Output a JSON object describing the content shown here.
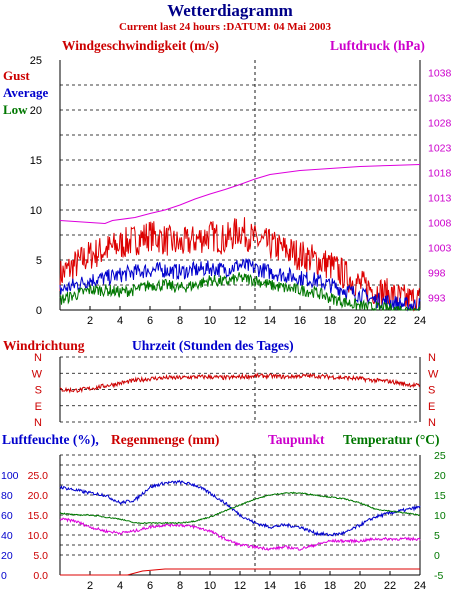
{
  "header": {
    "title": "Wetterdiagramm",
    "subtitle": "Current last 24 hours :DATUM: 04 Mai 2003"
  },
  "chart_data": [
    {
      "type": "line",
      "id": "wind_pressure",
      "left_title": "Windgeschwindigkeit (m/s)",
      "right_title": "Luftdruck (hPa)",
      "legend": [
        "Gust",
        "Average",
        "Low"
      ],
      "xlabel": "",
      "x_ticks": [
        2,
        4,
        6,
        8,
        10,
        12,
        14,
        16,
        18,
        20,
        22,
        24
      ],
      "xlim": [
        0,
        24
      ],
      "y_left_lim": [
        0,
        25
      ],
      "y_left_ticks": [
        0,
        5,
        10,
        15,
        20,
        25
      ],
      "y_right_lim": [
        990.5,
        1040.5
      ],
      "y_right_ticks": [
        993,
        998,
        1003,
        1008,
        1013,
        1018,
        1023,
        1028,
        1033,
        1038
      ],
      "grid": true,
      "marker_x": 13,
      "colors": {
        "gust": "#dd0000",
        "average": "#0000cc",
        "low": "#007700",
        "pressure": "#dd00dd"
      },
      "series": [
        {
          "name": "Gust",
          "axis": "left",
          "x": [
            0,
            1,
            2,
            3,
            4,
            5,
            6,
            7,
            8,
            9,
            10,
            11,
            12,
            13,
            14,
            15,
            16,
            17,
            18,
            19,
            20,
            21,
            22,
            23,
            24
          ],
          "values": [
            3.5,
            4.5,
            5.5,
            6.0,
            6.5,
            7.0,
            7.5,
            7.0,
            6.5,
            7.0,
            7.5,
            7.0,
            8.0,
            7.0,
            6.5,
            6.0,
            5.5,
            5.0,
            4.5,
            3.5,
            2.5,
            2.0,
            1.5,
            1.0,
            1.0
          ]
        },
        {
          "name": "Average",
          "axis": "left",
          "x": [
            0,
            1,
            2,
            3,
            4,
            5,
            6,
            7,
            8,
            9,
            10,
            11,
            12,
            13,
            14,
            15,
            16,
            17,
            18,
            19,
            20,
            21,
            22,
            23,
            24
          ],
          "values": [
            2.0,
            2.5,
            3.0,
            3.2,
            3.5,
            3.8,
            4.0,
            4.0,
            3.8,
            4.0,
            4.2,
            4.0,
            4.5,
            4.2,
            3.8,
            3.5,
            3.2,
            3.0,
            2.5,
            2.0,
            1.5,
            1.0,
            0.8,
            0.5,
            0.5
          ]
        },
        {
          "name": "Low",
          "axis": "left",
          "x": [
            0,
            1,
            2,
            3,
            4,
            5,
            6,
            7,
            8,
            9,
            10,
            11,
            12,
            13,
            14,
            15,
            16,
            17,
            18,
            19,
            20,
            21,
            22,
            23,
            24
          ],
          "values": [
            1.0,
            1.5,
            2.0,
            2.0,
            1.8,
            2.0,
            2.5,
            2.5,
            2.2,
            2.5,
            3.0,
            2.8,
            3.2,
            3.0,
            2.5,
            2.2,
            2.0,
            1.8,
            1.2,
            0.8,
            0.4,
            0.2,
            0.1,
            0.0,
            0.0
          ]
        },
        {
          "name": "Luftdruck",
          "axis": "right",
          "x": [
            0,
            2,
            3,
            3.5,
            5,
            6,
            7,
            8,
            9,
            10,
            11,
            12,
            13,
            14,
            15,
            16,
            17,
            18,
            19,
            20,
            21,
            22,
            23,
            24
          ],
          "values": [
            1008.4,
            1008.0,
            1007.8,
            1008.4,
            1009.0,
            1009.8,
            1010.5,
            1011.5,
            1012.7,
            1013.7,
            1014.6,
            1015.6,
            1016.7,
            1017.6,
            1018.0,
            1018.4,
            1018.6,
            1018.8,
            1019.0,
            1019.2,
            1019.3,
            1019.4,
            1019.5,
            1019.6
          ]
        }
      ]
    },
    {
      "type": "line",
      "id": "wind_direction",
      "title": "Windrichtung",
      "xlabel": "Uhrzeit (Stunden des Tages)",
      "y_categories": [
        "N",
        "W",
        "S",
        "E",
        "N"
      ],
      "xlim": [
        0,
        24
      ],
      "grid": true,
      "marker_x": 13,
      "series": [
        {
          "name": "Windrichtung",
          "x": [
            0,
            1,
            2,
            3,
            4,
            5,
            6,
            7,
            8,
            9,
            10,
            11,
            12,
            13,
            14,
            15,
            16,
            17,
            18,
            19,
            20,
            21,
            22,
            23,
            24
          ],
          "values": [
            180,
            175,
            185,
            200,
            215,
            230,
            240,
            245,
            245,
            250,
            250,
            245,
            250,
            255,
            255,
            250,
            255,
            255,
            250,
            245,
            240,
            230,
            225,
            210,
            200
          ]
        }
      ]
    },
    {
      "type": "line",
      "id": "humidity_temperature",
      "legend": [
        "Luftfeuchte (%),",
        "Regenmenge (mm)",
        "Taupunkt",
        "Temperatur (°C)"
      ],
      "x_ticks": [
        2,
        4,
        6,
        8,
        10,
        12,
        14,
        16,
        18,
        20,
        22,
        24
      ],
      "xlim": [
        0,
        24
      ],
      "y_left_ticks_humidity": [
        0,
        20,
        40,
        60,
        80,
        100
      ],
      "y_left_ticks_rain": [
        "0.0",
        "5.0",
        "10.0",
        "15.0",
        "20.0",
        "25.0"
      ],
      "y_right_lim": [
        -5,
        25
      ],
      "y_right_ticks": [
        -5,
        0,
        5,
        10,
        15,
        20,
        25
      ],
      "grid": true,
      "marker_x": 13,
      "colors": {
        "humidity": "#0000cc",
        "rain": "#dd0000",
        "dewpoint": "#dd00dd",
        "temperature": "#007700"
      },
      "series": [
        {
          "name": "Luftfeuchte",
          "axis": "humidity",
          "x": [
            0,
            1,
            2,
            3,
            4,
            5,
            6,
            7,
            8,
            9,
            10,
            11,
            12,
            13,
            14,
            15,
            16,
            17,
            18,
            19,
            20,
            21,
            22,
            23,
            24
          ],
          "values": [
            88,
            85,
            82,
            80,
            72,
            75,
            88,
            92,
            93,
            90,
            82,
            72,
            60,
            52,
            48,
            50,
            48,
            42,
            40,
            42,
            50,
            58,
            62,
            65,
            68
          ]
        },
        {
          "name": "Regenmenge",
          "axis": "rain",
          "x": [
            0,
            4.5,
            5.5,
            7,
            13,
            24
          ],
          "values": [
            0.0,
            0.0,
            1.0,
            1.5,
            1.5,
            1.5
          ]
        },
        {
          "name": "Taupunkt",
          "axis": "right",
          "x": [
            0,
            1,
            2,
            3,
            4,
            5,
            6,
            7,
            8,
            9,
            10,
            11,
            12,
            13,
            14,
            15,
            16,
            17,
            18,
            19,
            20,
            21,
            22,
            23,
            24
          ],
          "values": [
            9.0,
            8.5,
            7.0,
            6.0,
            5.5,
            6.0,
            7.0,
            7.5,
            7.5,
            7.0,
            6.0,
            4.0,
            2.5,
            2.0,
            1.5,
            2.0,
            1.5,
            2.5,
            3.5,
            3.5,
            3.5,
            4.0,
            4.0,
            4.0,
            4.0
          ]
        },
        {
          "name": "Temperatur",
          "axis": "right",
          "x": [
            0,
            1,
            2,
            3,
            4,
            5,
            6,
            7,
            8,
            9,
            10,
            11,
            12,
            13,
            14,
            15,
            16,
            17,
            18,
            19,
            20,
            21,
            22,
            23,
            24
          ],
          "values": [
            10.5,
            10.0,
            10.0,
            9.5,
            9.0,
            8.0,
            8.0,
            8.0,
            8.0,
            8.5,
            9.5,
            11.0,
            12.5,
            14.0,
            15.0,
            15.5,
            15.5,
            15.0,
            14.5,
            14.0,
            13.0,
            11.5,
            11.0,
            10.5,
            10.0
          ]
        }
      ]
    }
  ]
}
